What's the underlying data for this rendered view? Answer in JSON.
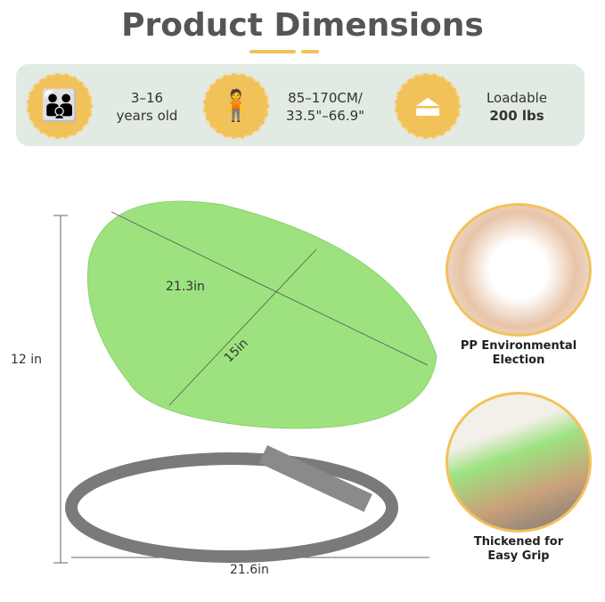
{
  "title": "Product Dimensions",
  "features": [
    {
      "icon": "family-icon",
      "line1": "3–16",
      "line2": "years old"
    },
    {
      "icon": "height-icon",
      "line1": "85–170CM/",
      "line2": "33.5\"–66.9\""
    },
    {
      "icon": "weight-icon",
      "line1": "Loadable",
      "line2": "200 lbs"
    }
  ],
  "dimensions": {
    "height": "12 in",
    "length": "21.3in",
    "width": "15in",
    "base": "21.6in"
  },
  "details": [
    {
      "caption_line1": "PP Environmental",
      "caption_line2": "Election"
    },
    {
      "caption_line1": "Thickened for",
      "caption_line2": "Easy Grip"
    }
  ],
  "colors": {
    "accent": "#f2c25a",
    "seat": "#9de27f",
    "frame": "#7a7a7a",
    "band": "#e1eae3"
  }
}
